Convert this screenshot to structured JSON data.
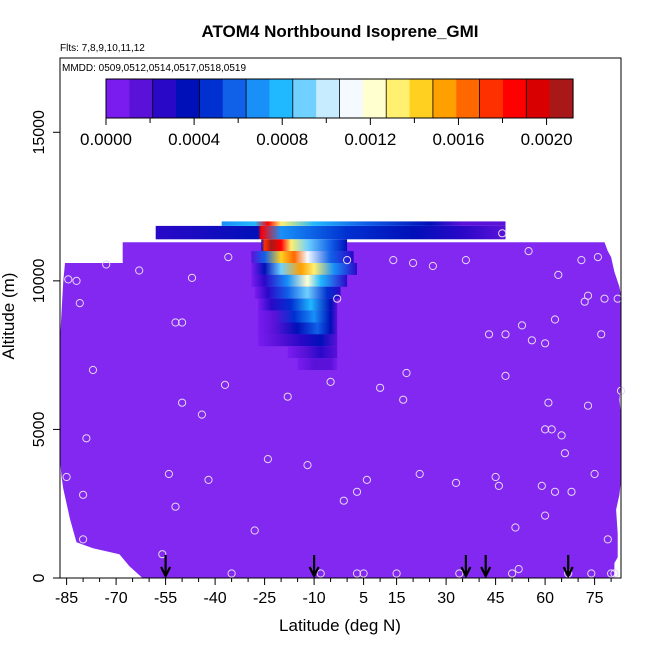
{
  "colors": {
    "background_purple": "#8228F0",
    "point": "#E6D8F5",
    "arrow": "#000000",
    "colorbar": [
      "#7A1CF0",
      "#5A12D8",
      "#2A08C8",
      "#0010B8",
      "#0030D0",
      "#1060E8",
      "#1890F8",
      "#20B8FF",
      "#70D0FF",
      "#C8ECFF",
      "#F4FAFF",
      "#FFFFD0",
      "#FFF070",
      "#FFD020",
      "#FFA000",
      "#FF6800",
      "#FF3000",
      "#FF0000",
      "#D80000",
      "#A81818"
    ]
  },
  "chart_data": {
    "type": "heatmap",
    "title": "ATOM4 Northbound Isoprene_GMI",
    "subtitle_flights": "Flts: 7,8,9,10,11,12",
    "subtitle_dates": "MMDD: 0509,0512,0514,0517,0518,0519",
    "xlabel": "Latitude (deg N)",
    "ylabel": "Altitude (m)",
    "xlim": [
      -87,
      83
    ],
    "ylim": [
      0,
      17500
    ],
    "x_tick_values": [
      -85,
      -70,
      -55,
      -40,
      -25,
      -10,
      5,
      15,
      30,
      45,
      60,
      75
    ],
    "x_tick_labels": [
      "-85",
      "-70",
      "-55",
      "-40",
      "-25",
      "-10",
      "5",
      "15",
      "30",
      "45",
      "60",
      "75"
    ],
    "x_minor_ticks": [
      -80,
      -75,
      -65,
      -60,
      -50,
      -45,
      -35,
      -30,
      -20,
      -15,
      -5,
      0,
      10,
      20,
      25,
      35,
      40,
      50,
      55,
      65,
      70,
      80
    ],
    "y_tick_values": [
      0,
      5000,
      10000,
      15000
    ],
    "y_tick_labels": [
      "0",
      "5000",
      "10000",
      "15000"
    ],
    "colorbar": {
      "min": 0.0,
      "max": 0.00212,
      "tick_values": [
        0.0,
        0.0004,
        0.0008,
        0.0012,
        0.0016,
        0.002
      ],
      "tick_labels": [
        "0.0000",
        "0.0004",
        "0.0008",
        "0.0012",
        "0.0016",
        "0.0020"
      ],
      "minor_ticks": [
        0.0002,
        0.0006,
        0.001,
        0.0014,
        0.0018
      ]
    },
    "background_value": 0.0,
    "domain_outline": [
      [
        -86.5,
        3400
      ],
      [
        -86,
        3000
      ],
      [
        -85,
        2500
      ],
      [
        -84,
        2000
      ],
      [
        -83,
        1600
      ],
      [
        -82,
        1200
      ],
      [
        -77,
        1000
      ],
      [
        -69,
        800
      ],
      [
        -66,
        400
      ],
      [
        -62,
        0
      ],
      [
        81,
        0
      ],
      [
        81,
        500
      ],
      [
        82,
        700
      ],
      [
        82,
        1500
      ],
      [
        81.5,
        2300
      ],
      [
        82.5,
        2800
      ],
      [
        83,
        3300
      ],
      [
        83,
        5500
      ],
      [
        82.5,
        6000
      ],
      [
        83,
        6500
      ],
      [
        83,
        9500
      ],
      [
        82.5,
        9800
      ],
      [
        81,
        10300
      ],
      [
        80,
        10800
      ],
      [
        79,
        11000
      ],
      [
        78,
        11300
      ],
      [
        -68,
        11300
      ],
      [
        -68,
        10600
      ],
      [
        -85.5,
        10600
      ],
      [
        -86,
        10000
      ],
      [
        -86.5,
        9000
      ],
      [
        -87,
        8000
      ],
      [
        -87,
        4000
      ]
    ],
    "upper_bands": [
      {
        "y0": 11400,
        "y1": 11850,
        "x0": -58,
        "x1": 48,
        "value": 0.0002,
        "stops": [
          [
            -58,
            0.0003
          ],
          [
            -27,
            0.00035
          ],
          [
            -26,
            0.0019
          ],
          [
            -20,
            0.00065
          ],
          [
            0,
            0.0005
          ],
          [
            20,
            0.0004
          ],
          [
            35,
            0.00025
          ],
          [
            48,
            0.0002
          ]
        ]
      },
      {
        "y0": 11850,
        "y1": 12000,
        "x0": -38,
        "x1": 48,
        "value": 0.0006,
        "stops": [
          [
            -38,
            0.0007
          ],
          [
            -28,
            0.0008
          ],
          [
            -24,
            0.00185
          ],
          [
            -20,
            0.0013
          ],
          [
            -10,
            0.0008
          ],
          [
            5,
            0.0006
          ],
          [
            25,
            0.00035
          ],
          [
            35,
            0.0002
          ],
          [
            48,
            0.0002
          ]
        ]
      }
    ],
    "plume_rows": [
      {
        "y0": 11000,
        "y1": 11400,
        "x0": -26,
        "x1": 0,
        "stops": [
          [
            -26,
            0.0004
          ],
          [
            -25,
            0.0017
          ],
          [
            -23,
            0.0021
          ],
          [
            -20,
            0.0019
          ],
          [
            -17,
            0.0013
          ],
          [
            -12,
            0.0009
          ],
          [
            -5,
            0.0006
          ],
          [
            0,
            0.0004
          ]
        ]
      },
      {
        "y0": 10600,
        "y1": 11000,
        "x0": -29,
        "x1": 2,
        "stops": [
          [
            -29,
            0.0002
          ],
          [
            -25,
            0.0006
          ],
          [
            -20,
            0.0014
          ],
          [
            -16,
            0.0016
          ],
          [
            -12,
            0.0011
          ],
          [
            -5,
            0.0006
          ],
          [
            2,
            0.0003
          ]
        ]
      },
      {
        "y0": 10200,
        "y1": 10600,
        "x0": -29,
        "x1": 3,
        "stops": [
          [
            -29,
            0.0001
          ],
          [
            -25,
            0.0004
          ],
          [
            -20,
            0.0009
          ],
          [
            -14,
            0.0015
          ],
          [
            -10,
            0.0013
          ],
          [
            -4,
            0.0007
          ],
          [
            3,
            0.0003
          ]
        ]
      },
      {
        "y0": 9800,
        "y1": 10200,
        "x0": -29,
        "x1": 0,
        "stops": [
          [
            -29,
            0.0001
          ],
          [
            -25,
            0.0003
          ],
          [
            -18,
            0.0007
          ],
          [
            -12,
            0.0012
          ],
          [
            -8,
            0.0008
          ],
          [
            0,
            0.0003
          ]
        ]
      },
      {
        "y0": 9400,
        "y1": 9800,
        "x0": -28,
        "x1": -2,
        "stops": [
          [
            -28,
            0.0001
          ],
          [
            -24,
            0.0003
          ],
          [
            -18,
            0.0006
          ],
          [
            -12,
            0.0009
          ],
          [
            -6,
            0.0005
          ],
          [
            -2,
            0.0003
          ]
        ]
      },
      {
        "y0": 9000,
        "y1": 9400,
        "x0": -27,
        "x1": -3,
        "stops": [
          [
            -27,
            0.0001
          ],
          [
            -23,
            0.0003
          ],
          [
            -17,
            0.0005
          ],
          [
            -11,
            0.0008
          ],
          [
            -5,
            0.0004
          ],
          [
            -3,
            0.0002
          ]
        ]
      },
      {
        "y0": 8600,
        "y1": 9000,
        "x0": -27,
        "x1": -3,
        "stops": [
          [
            -27,
            0.0001
          ],
          [
            -22,
            0.0002
          ],
          [
            -16,
            0.0005
          ],
          [
            -10,
            0.0007
          ],
          [
            -5,
            0.0004
          ],
          [
            -3,
            0.0002
          ]
        ]
      },
      {
        "y0": 8200,
        "y1": 8600,
        "x0": -27,
        "x1": -3,
        "stops": [
          [
            -27,
            0.0001
          ],
          [
            -22,
            0.0002
          ],
          [
            -15,
            0.0004
          ],
          [
            -9,
            0.0006
          ],
          [
            -5,
            0.0004
          ],
          [
            -3,
            0.0002
          ]
        ]
      },
      {
        "y0": 7800,
        "y1": 8200,
        "x0": -27,
        "x1": -3,
        "stops": [
          [
            -27,
            0.0001
          ],
          [
            -21,
            0.0002
          ],
          [
            -14,
            0.0003
          ],
          [
            -8,
            0.0004
          ],
          [
            -3,
            0.0002
          ]
        ]
      },
      {
        "y0": 7400,
        "y1": 7800,
        "x0": -18,
        "x1": -3,
        "stops": [
          [
            -18,
            0.0001
          ],
          [
            -13,
            0.0002
          ],
          [
            -8,
            0.0003
          ],
          [
            -3,
            0.0002
          ]
        ]
      },
      {
        "y0": 7000,
        "y1": 7400,
        "x0": -15,
        "x1": -3,
        "stops": [
          [
            -15,
            0.0001
          ],
          [
            -10,
            0.0002
          ],
          [
            -5,
            0.0002
          ],
          [
            -3,
            0.0001
          ]
        ]
      }
    ],
    "sample_points": [
      [
        -84.5,
        10050
      ],
      [
        -81,
        9250
      ],
      [
        -73,
        10550
      ],
      [
        -80,
        1300
      ],
      [
        -80,
        2800
      ],
      [
        -79,
        4700
      ],
      [
        -77,
        7000
      ],
      [
        -63,
        10350
      ],
      [
        -56,
        800
      ],
      [
        -54,
        3500
      ],
      [
        -52,
        2400
      ],
      [
        -52,
        8600
      ],
      [
        -50,
        8600
      ],
      [
        -50,
        5900
      ],
      [
        -47,
        10100
      ],
      [
        -44,
        5500
      ],
      [
        -42,
        3300
      ],
      [
        -37,
        6500
      ],
      [
        -36,
        10800
      ],
      [
        -35,
        150
      ],
      [
        -28,
        1600
      ],
      [
        -24,
        4000
      ],
      [
        -18,
        6100
      ],
      [
        -12,
        3800
      ],
      [
        -8,
        150
      ],
      [
        -5,
        6600
      ],
      [
        -3,
        9400
      ],
      [
        -1,
        2600
      ],
      [
        0,
        10700
      ],
      [
        3,
        2900
      ],
      [
        3,
        150
      ],
      [
        5,
        150
      ],
      [
        6,
        3300
      ],
      [
        10,
        6400
      ],
      [
        14,
        10700
      ],
      [
        15,
        150
      ],
      [
        17,
        6000
      ],
      [
        18,
        6900
      ],
      [
        20,
        10600
      ],
      [
        22,
        3500
      ],
      [
        26,
        10500
      ],
      [
        33,
        3200
      ],
      [
        34,
        150
      ],
      [
        36,
        10700
      ],
      [
        43,
        8200
      ],
      [
        47,
        11600
      ],
      [
        45,
        3400
      ],
      [
        46,
        3100
      ],
      [
        48,
        6800
      ],
      [
        48,
        8200
      ],
      [
        50,
        150
      ],
      [
        51,
        1700
      ],
      [
        52,
        300
      ],
      [
        53,
        8500
      ],
      [
        55,
        11000
      ],
      [
        56,
        8000
      ],
      [
        59,
        3100
      ],
      [
        60,
        2100
      ],
      [
        60,
        7900
      ],
      [
        60,
        5000
      ],
      [
        61,
        5900
      ],
      [
        62,
        5000
      ],
      [
        63,
        8700
      ],
      [
        63,
        2900
      ],
      [
        64,
        10200
      ],
      [
        65,
        4800
      ],
      [
        66,
        4200
      ],
      [
        67,
        150
      ],
      [
        68,
        2900
      ],
      [
        71,
        10700
      ],
      [
        72,
        9300
      ],
      [
        73,
        9500
      ],
      [
        73,
        5800
      ],
      [
        74,
        150
      ],
      [
        75,
        3500
      ],
      [
        76,
        10800
      ],
      [
        77,
        8200
      ],
      [
        78,
        9400
      ],
      [
        79,
        1300
      ],
      [
        80,
        150
      ],
      [
        81,
        150
      ],
      [
        82,
        9400
      ],
      [
        83,
        6300
      ],
      [
        -85,
        3400
      ],
      [
        -82,
        10000
      ]
    ],
    "flight_arrows_lat": [
      -55,
      -10,
      36,
      42,
      67
    ]
  }
}
